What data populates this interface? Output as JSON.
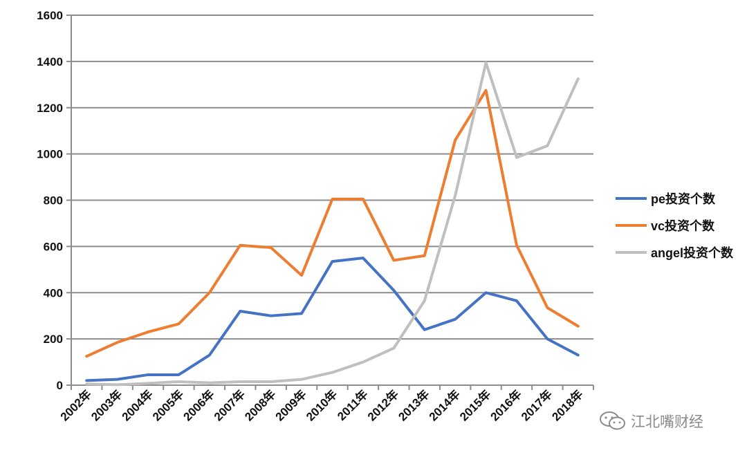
{
  "chart_data": {
    "type": "line",
    "categories": [
      "2002年",
      "2003年",
      "2004年",
      "2005年",
      "2006年",
      "2007年",
      "2008年",
      "2009年",
      "2010年",
      "2011年",
      "2012年",
      "2013年",
      "2014年",
      "2015年",
      "2016年",
      "2017年",
      "2018年"
    ],
    "ylim": [
      0,
      1600
    ],
    "yticks": [
      0,
      200,
      400,
      600,
      800,
      1000,
      1200,
      1400,
      1600
    ],
    "grid": true,
    "legend_position": "right",
    "series": [
      {
        "name": "pe投资个数",
        "color": "#4472c4",
        "values": [
          20,
          25,
          45,
          45,
          130,
          320,
          300,
          310,
          535,
          550,
          410,
          240,
          285,
          400,
          365,
          200,
          130
        ]
      },
      {
        "name": "vc投资个数",
        "color": "#ed7d31",
        "values": [
          125,
          185,
          230,
          265,
          400,
          605,
          595,
          475,
          805,
          805,
          540,
          560,
          1060,
          1275,
          605,
          335,
          255
        ]
      },
      {
        "name": "angel投资个数",
        "color": "#bfbfbf",
        "values": [
          5,
          2,
          8,
          15,
          10,
          15,
          15,
          25,
          55,
          100,
          160,
          365,
          820,
          1395,
          985,
          1035,
          1325
        ]
      }
    ]
  },
  "watermark": {
    "text": "江北嘴财经",
    "icon": "wechat-icon"
  }
}
